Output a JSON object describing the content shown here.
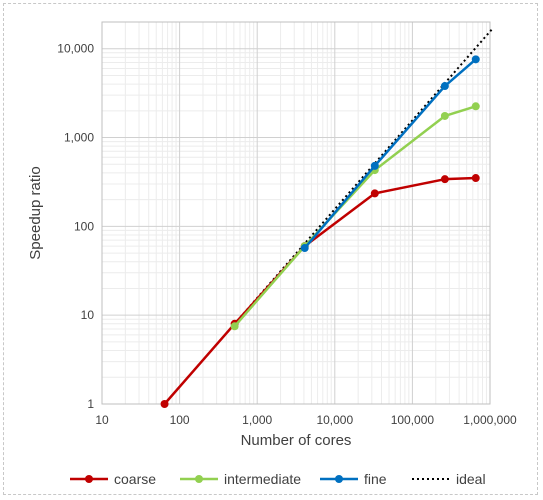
{
  "chart_data": {
    "type": "line",
    "x_scale": "log",
    "y_scale": "log",
    "xlabel": "Number of cores",
    "ylabel": "Speedup ratio",
    "xlim": [
      10,
      1000000
    ],
    "ylim": [
      1,
      20000
    ],
    "x_ticks": [
      10,
      100,
      1000,
      10000,
      100000,
      1000000
    ],
    "x_tick_labels": [
      "10",
      "100",
      "1,000",
      "10,000",
      "100,000",
      "1,000,000"
    ],
    "y_ticks": [
      1,
      10,
      100,
      1000,
      10000
    ],
    "y_tick_labels": [
      "1",
      "10",
      "100",
      "1,000",
      "10,000"
    ],
    "grid": true,
    "legend_position": "bottom",
    "series": [
      {
        "name": "coarse",
        "color": "#c00000",
        "style": "solid-markers",
        "points": [
          [
            64,
            1
          ],
          [
            512,
            8
          ],
          [
            4096,
            60
          ],
          [
            32768,
            235
          ],
          [
            262144,
            340
          ],
          [
            655360,
            350
          ]
        ]
      },
      {
        "name": "intermediate",
        "color": "#92d050",
        "style": "solid-markers",
        "points": [
          [
            512,
            7.5
          ],
          [
            4096,
            60
          ],
          [
            32768,
            430
          ],
          [
            262144,
            1750
          ],
          [
            655360,
            2250
          ]
        ]
      },
      {
        "name": "fine",
        "color": "#0070c0",
        "style": "solid-markers",
        "points": [
          [
            4096,
            57
          ],
          [
            32768,
            480
          ],
          [
            262144,
            3800
          ],
          [
            655360,
            7600
          ]
        ]
      },
      {
        "name": "ideal",
        "color": "#000000",
        "style": "dotted",
        "points": [
          [
            64,
            1
          ],
          [
            1048576,
            16384
          ]
        ]
      }
    ]
  }
}
